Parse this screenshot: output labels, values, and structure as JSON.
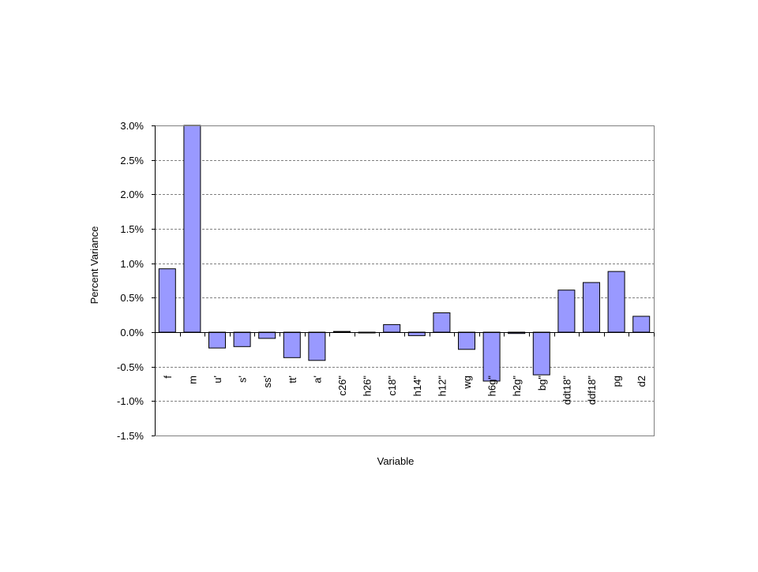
{
  "chart_data": {
    "type": "bar",
    "title": "",
    "xlabel": "Variable",
    "ylabel": "Percent Variance",
    "ylim": [
      -0.015,
      0.03
    ],
    "yticks": [
      0.03,
      0.025,
      0.02,
      0.015,
      0.01,
      0.005,
      0.0,
      -0.005,
      -0.01,
      -0.015
    ],
    "ytick_labels": [
      "3.0%",
      "2.5%",
      "2.0%",
      "1.5%",
      "1.0%",
      "0.5%",
      "0.0%",
      "-0.5%",
      "-1.0%",
      "-1.5%"
    ],
    "grid": true,
    "legend": "none",
    "bar_color": "#9999ff",
    "bar_edge_color": "#000000",
    "plot_border_color": "#808080",
    "grid_color": "#808080",
    "categories": [
      "f",
      "m",
      "u'",
      "s'",
      "ss'",
      "tt'",
      "a'",
      "c26\"",
      "h26\"",
      "c18\"",
      "h14\"",
      "h12\"",
      "wg",
      "h6g\"",
      "h2g\"",
      "bg\"",
      "ddt18\"",
      "ddf18\"",
      "pg",
      "d2"
    ],
    "values": [
      0.0092,
      0.03,
      -0.0023,
      -0.0021,
      -0.0009,
      -0.0037,
      -0.0041,
      0.0001,
      -0.0001,
      0.0011,
      -0.0005,
      0.0028,
      -0.0025,
      -0.0071,
      -0.0002,
      -0.0062,
      0.0061,
      0.0072,
      0.0088,
      0.0023
    ]
  }
}
